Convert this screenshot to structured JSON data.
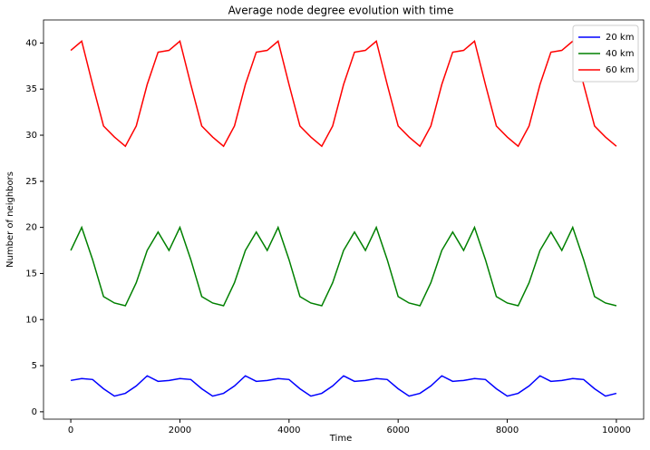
{
  "chart_data": {
    "type": "line",
    "title": "Average node degree evolution with time",
    "x_label": "Time",
    "y_label": "Number of neighbors",
    "x": [
      0,
      200,
      400,
      600,
      800,
      1000,
      1200,
      1400,
      1600,
      1800,
      2000,
      2200,
      2400,
      2600,
      2800,
      3000,
      3200,
      3400,
      3600,
      3800,
      4000,
      4200,
      4400,
      4600,
      4800,
      5000,
      5200,
      5400,
      5600,
      5800,
      6000,
      6200,
      6400,
      6600,
      6800,
      7000,
      7200,
      7400,
      7600,
      7800,
      8000,
      8200,
      8400,
      8600,
      8800,
      9000,
      9200,
      9400,
      9600,
      9800,
      10000
    ],
    "series": [
      {
        "name": "20 km",
        "color": "#0000ff",
        "values": [
          3.4,
          3.6,
          3.5,
          2.5,
          1.7,
          2.0,
          2.8,
          3.9,
          3.3,
          3.4,
          3.6,
          3.5,
          2.5,
          1.7,
          2.0,
          2.8,
          3.9,
          3.3,
          3.4,
          3.6,
          3.5,
          2.5,
          1.7,
          2.0,
          2.8,
          3.9,
          3.3,
          3.4,
          3.6,
          3.5,
          2.5,
          1.7,
          2.0,
          2.8,
          3.9,
          3.3,
          3.4,
          3.6,
          3.5,
          2.5,
          1.7,
          2.0,
          2.8,
          3.9,
          3.3,
          3.4,
          3.6,
          3.5,
          2.5,
          1.7,
          2.0
        ]
      },
      {
        "name": "40 km",
        "color": "#008000",
        "values": [
          17.5,
          20,
          16.5,
          12.5,
          11.8,
          11.5,
          14,
          17.5,
          19.5,
          17.5,
          20,
          16.5,
          12.5,
          11.8,
          11.5,
          14,
          17.5,
          19.5,
          17.5,
          20,
          16.5,
          12.5,
          11.8,
          11.5,
          14,
          17.5,
          19.5,
          17.5,
          20,
          16.5,
          12.5,
          11.8,
          11.5,
          14,
          17.5,
          19.5,
          17.5,
          20,
          16.5,
          12.5,
          11.8,
          11.5,
          14,
          17.5,
          19.5,
          17.5,
          20,
          16.5,
          12.5,
          11.8,
          11.5
        ]
      },
      {
        "name": "60 km",
        "color": "#ff0000",
        "values": [
          39.2,
          40.2,
          35.5,
          31,
          29.8,
          28.8,
          31,
          35.5,
          39,
          39.2,
          40.2,
          35.5,
          31,
          29.8,
          28.8,
          31,
          35.5,
          39,
          39.2,
          40.2,
          35.5,
          31,
          29.8,
          28.8,
          31,
          35.5,
          39,
          39.2,
          40.2,
          35.5,
          31,
          29.8,
          28.8,
          31,
          35.5,
          39,
          39.2,
          40.2,
          35.5,
          31,
          29.8,
          28.8,
          31,
          35.5,
          39,
          39.2,
          40.2,
          35.5,
          31,
          29.8,
          28.8
        ]
      }
    ],
    "xlim": [
      -500,
      10500
    ],
    "ylim": [
      -0.8,
      42.5
    ],
    "xticks": [
      0,
      2000,
      4000,
      6000,
      8000,
      10000
    ],
    "yticks": [
      0,
      5,
      10,
      15,
      20,
      25,
      30,
      35,
      40
    ],
    "legend": "upper right"
  }
}
